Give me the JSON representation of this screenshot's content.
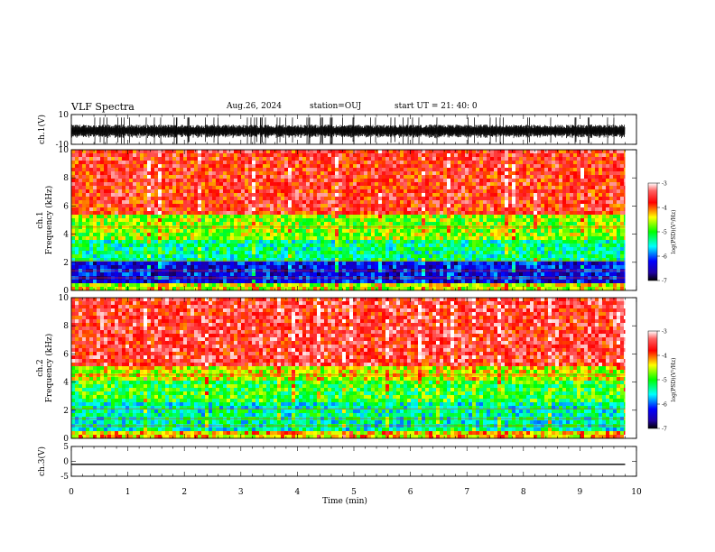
{
  "header": {
    "title": "VLF Spectra",
    "date": "Aug.26, 2024",
    "station": "station=OUJ",
    "start": "start UT =  21: 40: 0"
  },
  "chart_data": [
    {
      "type": "line",
      "panel": "ch1-waveform",
      "ylabel": "ch.1(V)",
      "ylim": [
        -10,
        10
      ],
      "yticks": [
        "10",
        "-10"
      ],
      "x": [
        0,
        10
      ],
      "description_values": {
        "baseline": -1,
        "noise_amplitude": 7
      },
      "color": "#000000"
    },
    {
      "type": "heatmap",
      "panel": "ch1-spectrogram",
      "ylabel": [
        "ch.1",
        "Frequency (kHz)"
      ],
      "ylim": [
        0,
        10
      ],
      "yticks": [
        "0",
        "2",
        "4",
        "6",
        "8",
        "10"
      ],
      "data_xlim": [
        0,
        9.8
      ],
      "colorbar": {
        "label": "log(PSD)(V²/Hz)",
        "range": [
          -7,
          -3
        ],
        "ticks": [
          "-3",
          "-4",
          "-5",
          "-6",
          "-7"
        ]
      },
      "bands_khz": [
        {
          "from": 0,
          "to": 0.4,
          "log_psd": -4.5
        },
        {
          "from": 0.4,
          "to": 2.0,
          "log_psd": -6.3
        },
        {
          "from": 2.0,
          "to": 3.6,
          "log_psd": -5.3
        },
        {
          "from": 3.6,
          "to": 5.4,
          "log_psd": -4.7
        },
        {
          "from": 5.4,
          "to": 10,
          "log_psd": -3.7
        }
      ]
    },
    {
      "type": "heatmap",
      "panel": "ch2-spectrogram",
      "ylabel": [
        "ch.2",
        "Frequency (kHz)"
      ],
      "ylim": [
        0,
        10
      ],
      "yticks": [
        "0",
        "2",
        "4",
        "6",
        "8",
        "10"
      ],
      "data_xlim": [
        0,
        9.8
      ],
      "colorbar": {
        "label": "log(PSD)(V²/Hz)",
        "range": [
          -7,
          -3
        ],
        "ticks": [
          "-3",
          "-4",
          "-5",
          "-6",
          "-7"
        ]
      },
      "bands_khz": [
        {
          "from": 0,
          "to": 0.5,
          "log_psd": -4.3
        },
        {
          "from": 0.5,
          "to": 2.5,
          "log_psd": -5.4
        },
        {
          "from": 2.5,
          "to": 4.2,
          "log_psd": -5.0
        },
        {
          "from": 4.2,
          "to": 5.2,
          "log_psd": -4.5
        },
        {
          "from": 5.2,
          "to": 10,
          "log_psd": -3.6
        }
      ]
    },
    {
      "type": "line",
      "panel": "ch3-waveform",
      "ylabel": "ch.3(V)",
      "ylim": [
        -5,
        5
      ],
      "yticks": [
        "5",
        "0",
        "-5"
      ],
      "x": [
        0,
        9.8
      ],
      "y": [
        -1,
        -1
      ],
      "color": "#000000"
    }
  ],
  "x_axis": {
    "label": "Time (min)",
    "range": [
      0,
      10
    ],
    "ticks": [
      "0",
      "1",
      "2",
      "3",
      "4",
      "5",
      "6",
      "7",
      "8",
      "9",
      "10"
    ]
  }
}
